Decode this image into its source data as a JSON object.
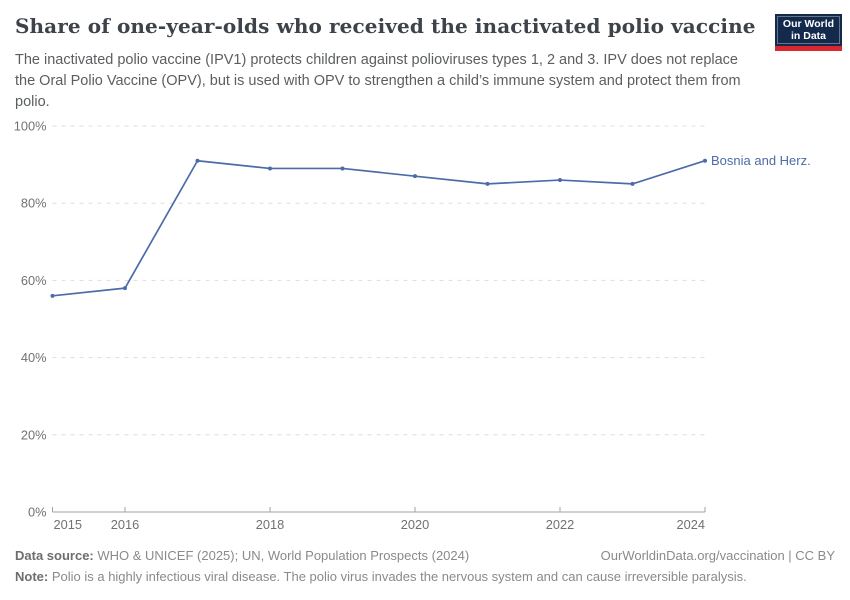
{
  "header": {
    "title": "Share of one-year-olds who received the inactivated polio vaccine",
    "subtitle": "The inactivated polio vaccine (IPV1) protects children against polioviruses types 1, 2 and 3. IPV does not replace the Oral Polio Vaccine (OPV), but is used with OPV to strengthen a child’s immune system and protect them from polio.",
    "logo": {
      "line1": "Our World",
      "line2": "in Data",
      "bg_color": "#132a4d",
      "accent_color": "#d8272f"
    }
  },
  "chart_data": {
    "type": "line",
    "title": "Share of one-year-olds who received the inactivated polio vaccine",
    "x": [
      2015,
      2016,
      2017,
      2018,
      2019,
      2020,
      2021,
      2022,
      2023,
      2024
    ],
    "series": [
      {
        "name": "Bosnia and Herz.",
        "values": [
          56,
          58,
          91,
          89,
          89,
          87,
          85,
          86,
          85,
          91
        ],
        "color": "#4c6ba8"
      }
    ],
    "ylim": [
      0,
      100
    ],
    "yticks": [
      0,
      20,
      40,
      60,
      80,
      100
    ],
    "ytick_labels": [
      "0%",
      "20%",
      "40%",
      "60%",
      "80%",
      "100%"
    ],
    "xticks": [
      2015,
      2016,
      2018,
      2020,
      2022,
      2024
    ],
    "xtick_labels": [
      "2015",
      "2016",
      "2018",
      "2020",
      "2022",
      "2024"
    ],
    "grid": "horizontal-dashed",
    "legend_position": "line-end-label",
    "grid_color": "#dddddd",
    "axis_color": "#a2a2a2",
    "tick_label_color": "#6e7276"
  },
  "footer": {
    "datasource_label": "Data source:",
    "datasource_text": " WHO & UNICEF (2025); UN, World Population Prospects (2024)",
    "link": "OurWorldinData.org/vaccination | CC BY",
    "note_label": "Note:",
    "note_text": " Polio is a highly infectious viral disease. The polio virus invades the nervous system and can cause irreversible paralysis."
  }
}
